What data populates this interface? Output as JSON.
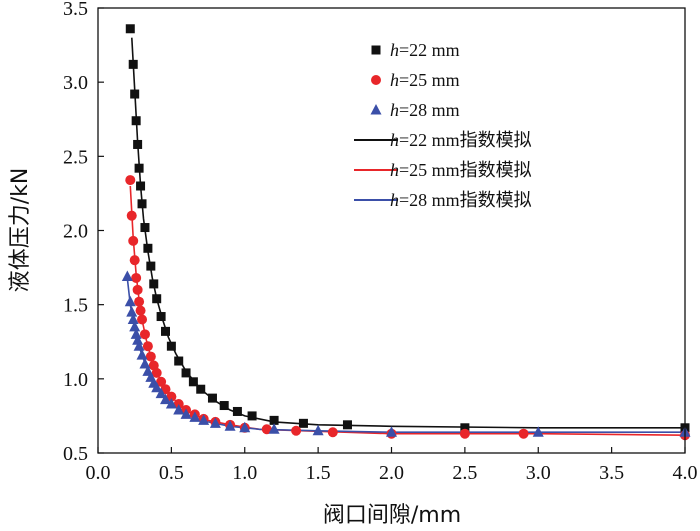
{
  "chart_data": {
    "type": "scatter",
    "title": "",
    "xlabel": "阀口间隙/mm",
    "ylabel": "液体压力/kN",
    "xlim": [
      0.0,
      4.0
    ],
    "ylim": [
      0.5,
      3.5
    ],
    "xticks": [
      "0.0",
      "0.5",
      "1.0",
      "1.5",
      "2.0",
      "2.5",
      "3.0",
      "3.5",
      "4.0"
    ],
    "yticks": [
      "0.5",
      "1.0",
      "1.5",
      "2.0",
      "2.5",
      "3.0",
      "3.5"
    ],
    "grid": false,
    "legend_position": "top-right",
    "series": [
      {
        "name": "h=22 mm",
        "legend_italic": "h",
        "legend_rest": "=22 mm",
        "kind": "markers",
        "marker": "square",
        "color": "#111111",
        "x": [
          0.22,
          0.24,
          0.25,
          0.26,
          0.27,
          0.28,
          0.29,
          0.3,
          0.32,
          0.34,
          0.36,
          0.38,
          0.4,
          0.43,
          0.46,
          0.5,
          0.55,
          0.6,
          0.65,
          0.7,
          0.78,
          0.86,
          0.95,
          1.05,
          1.2,
          1.4,
          1.7,
          2.5,
          4.0
        ],
        "y": [
          3.36,
          3.12,
          2.92,
          2.74,
          2.58,
          2.42,
          2.3,
          2.18,
          2.02,
          1.88,
          1.76,
          1.64,
          1.54,
          1.42,
          1.32,
          1.22,
          1.12,
          1.04,
          0.98,
          0.93,
          0.87,
          0.82,
          0.78,
          0.75,
          0.72,
          0.7,
          0.69,
          0.67,
          0.67
        ]
      },
      {
        "name": "h=25 mm",
        "legend_italic": "h",
        "legend_rest": "=25 mm",
        "kind": "markers",
        "marker": "circle",
        "color": "#e8262a",
        "x": [
          0.22,
          0.23,
          0.24,
          0.25,
          0.26,
          0.27,
          0.28,
          0.29,
          0.3,
          0.32,
          0.34,
          0.36,
          0.38,
          0.4,
          0.43,
          0.46,
          0.5,
          0.55,
          0.6,
          0.66,
          0.72,
          0.8,
          0.9,
          1.0,
          1.15,
          1.35,
          1.6,
          2.0,
          2.5,
          2.9,
          4.0
        ],
        "y": [
          2.34,
          2.1,
          1.93,
          1.8,
          1.68,
          1.6,
          1.52,
          1.46,
          1.4,
          1.3,
          1.22,
          1.15,
          1.09,
          1.04,
          0.98,
          0.93,
          0.88,
          0.83,
          0.79,
          0.76,
          0.73,
          0.71,
          0.69,
          0.67,
          0.66,
          0.65,
          0.64,
          0.63,
          0.63,
          0.63,
          0.62
        ]
      },
      {
        "name": "h=28 mm",
        "legend_italic": "h",
        "legend_rest": "=28 mm",
        "kind": "markers",
        "marker": "triangle",
        "color": "#3b4fa8",
        "x": [
          0.2,
          0.22,
          0.23,
          0.24,
          0.25,
          0.26,
          0.27,
          0.28,
          0.3,
          0.32,
          0.34,
          0.36,
          0.38,
          0.4,
          0.43,
          0.46,
          0.5,
          0.55,
          0.6,
          0.66,
          0.72,
          0.8,
          0.9,
          1.0,
          1.2,
          1.5,
          2.0,
          3.0,
          4.0
        ],
        "y": [
          1.69,
          1.52,
          1.45,
          1.4,
          1.35,
          1.3,
          1.26,
          1.22,
          1.16,
          1.1,
          1.05,
          1.01,
          0.97,
          0.94,
          0.9,
          0.86,
          0.83,
          0.79,
          0.76,
          0.74,
          0.72,
          0.7,
          0.68,
          0.67,
          0.66,
          0.65,
          0.64,
          0.64,
          0.64
        ]
      },
      {
        "name": "h=22 mm指数模拟",
        "legend_italic": "h",
        "legend_rest": "=22 mm指数模拟",
        "kind": "line",
        "color": "#111111",
        "x": [
          0.23,
          0.25,
          0.27,
          0.29,
          0.31,
          0.34,
          0.37,
          0.4,
          0.44,
          0.48,
          0.53,
          0.6,
          0.7,
          0.8,
          0.9,
          1.0,
          1.2,
          1.5,
          2.0,
          3.0,
          4.0
        ],
        "y": [
          3.3,
          2.95,
          2.6,
          2.3,
          2.08,
          1.86,
          1.68,
          1.54,
          1.4,
          1.28,
          1.17,
          1.05,
          0.93,
          0.85,
          0.79,
          0.75,
          0.71,
          0.69,
          0.68,
          0.67,
          0.67
        ]
      },
      {
        "name": "h=25 mm指数模拟",
        "legend_italic": "h",
        "legend_rest": "=25 mm指数模拟",
        "kind": "line",
        "color": "#e8262a",
        "x": [
          0.22,
          0.24,
          0.26,
          0.28,
          0.3,
          0.33,
          0.36,
          0.4,
          0.45,
          0.5,
          0.57,
          0.65,
          0.75,
          0.9,
          1.1,
          1.4,
          2.0,
          3.0,
          4.0
        ],
        "y": [
          2.3,
          1.95,
          1.7,
          1.53,
          1.4,
          1.26,
          1.15,
          1.04,
          0.95,
          0.88,
          0.81,
          0.76,
          0.72,
          0.69,
          0.66,
          0.65,
          0.63,
          0.63,
          0.62
        ]
      },
      {
        "name": "h=28 mm指数模拟",
        "legend_italic": "h",
        "legend_rest": "=28 mm指数模拟",
        "kind": "line",
        "color": "#3b4fa8",
        "x": [
          0.2,
          0.22,
          0.24,
          0.26,
          0.28,
          0.3,
          0.33,
          0.36,
          0.4,
          0.45,
          0.5,
          0.57,
          0.65,
          0.75,
          0.9,
          1.1,
          1.5,
          2.0,
          3.0,
          4.0
        ],
        "y": [
          1.68,
          1.5,
          1.39,
          1.3,
          1.22,
          1.16,
          1.08,
          1.01,
          0.94,
          0.87,
          0.83,
          0.78,
          0.74,
          0.71,
          0.68,
          0.66,
          0.65,
          0.64,
          0.64,
          0.64
        ]
      }
    ]
  }
}
